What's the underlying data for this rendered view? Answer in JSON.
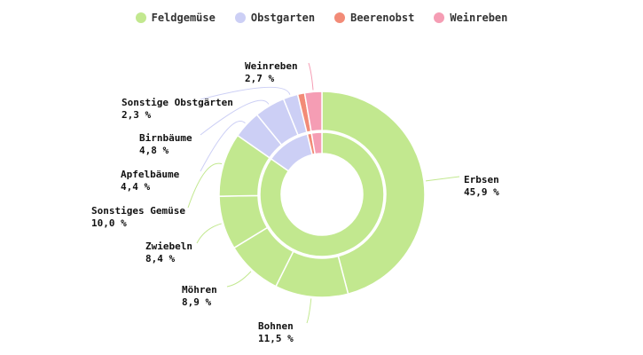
{
  "chart_data": {
    "type": "pie",
    "legend_position": "top",
    "legend": [
      {
        "name": "Feldgemüse",
        "color": "#c2e88f"
      },
      {
        "name": "Obstgarten",
        "color": "#cccff5"
      },
      {
        "name": "Beerenobst",
        "color": "#f28b77"
      },
      {
        "name": "Weinreben",
        "color": "#f59db4"
      }
    ],
    "inner_ring": [
      {
        "name": "Feldgemüse",
        "value": 84.7,
        "color": "#c2e88f"
      },
      {
        "name": "Obstgarten",
        "value": 11.5,
        "color": "#cccff5"
      },
      {
        "name": "Beerenobst",
        "value": 1.1,
        "color": "#f28b77"
      },
      {
        "name": "Weinreben",
        "value": 2.7,
        "color": "#f59db4"
      }
    ],
    "outer_ring": [
      {
        "name": "Erbsen",
        "value": 45.9,
        "label": "45,9 %",
        "color": "#c2e88f"
      },
      {
        "name": "Bohnen",
        "value": 11.5,
        "label": "11,5 %",
        "color": "#c2e88f"
      },
      {
        "name": "Möhren",
        "value": 8.9,
        "label": "8,9 %",
        "color": "#c2e88f"
      },
      {
        "name": "Zwiebeln",
        "value": 8.4,
        "label": "8,4 %",
        "color": "#c2e88f"
      },
      {
        "name": "Sonstiges Gemüse",
        "value": 10.0,
        "label": "10,0 %",
        "color": "#c2e88f"
      },
      {
        "name": "Apfelbäume",
        "value": 4.4,
        "label": "4,4 %",
        "color": "#cccff5"
      },
      {
        "name": "Birnbäume",
        "value": 4.8,
        "label": "4,8 %",
        "color": "#cccff5"
      },
      {
        "name": "Sonstige Obstgärten",
        "value": 2.3,
        "label": "2,3 %",
        "color": "#cccff5"
      },
      {
        "name": "Beerenobst",
        "value": 1.1,
        "color": "#f28b77"
      },
      {
        "name": "Weinreben",
        "value": 2.7,
        "label": "2,7 %",
        "color": "#f59db4"
      }
    ]
  }
}
